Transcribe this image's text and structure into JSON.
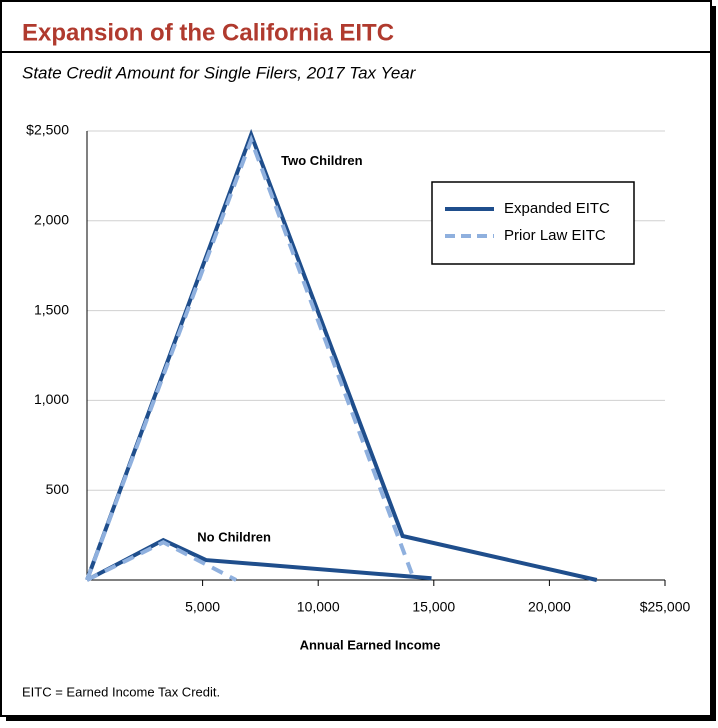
{
  "chart_data": {
    "type": "line",
    "title": "Expansion of the California EITC",
    "subtitle": "State Credit Amount for Single Filers, 2017 Tax Year",
    "x_label": "Annual Earned Income",
    "footnote": "EITC = Earned Income Tax Credit.",
    "xlim": [
      0,
      25000
    ],
    "ylim": [
      0,
      2500
    ],
    "xticks": [
      {
        "value": 5000,
        "label": "5,000"
      },
      {
        "value": 10000,
        "label": "10,000"
      },
      {
        "value": 15000,
        "label": "15,000"
      },
      {
        "value": 20000,
        "label": "20,000"
      },
      {
        "value": 25000,
        "label": "$25,000"
      }
    ],
    "yticks": [
      {
        "value": 500,
        "label": "500"
      },
      {
        "value": 1000,
        "label": "1,000"
      },
      {
        "value": 1500,
        "label": "1,500"
      },
      {
        "value": 2000,
        "label": "2,000"
      },
      {
        "value": 2500,
        "label": "$2,500"
      }
    ],
    "grid": true,
    "legend": "upper right",
    "series": [
      {
        "name": "Expanded EITC",
        "color": "#1f4e8c",
        "dashed": false,
        "lines": [
          {
            "label": "Two Children",
            "x": [
              0,
              7100,
              13650,
              22050
            ],
            "values": [
              0,
              2480,
              245,
              0
            ]
          },
          {
            "label": "No Children",
            "x": [
              0,
              3300,
              5150,
              14900
            ],
            "values": [
              0,
              222,
              111,
              10
            ]
          }
        ]
      },
      {
        "name": "Prior Law EITC",
        "color": "#8fb0de",
        "dashed": true,
        "lines": [
          {
            "x": [
              0,
              7100,
              14150
            ],
            "values": [
              0,
              2450,
              0
            ]
          },
          {
            "x": [
              0,
              3300,
              6450
            ],
            "values": [
              0,
              210,
              0
            ]
          }
        ]
      }
    ]
  }
}
